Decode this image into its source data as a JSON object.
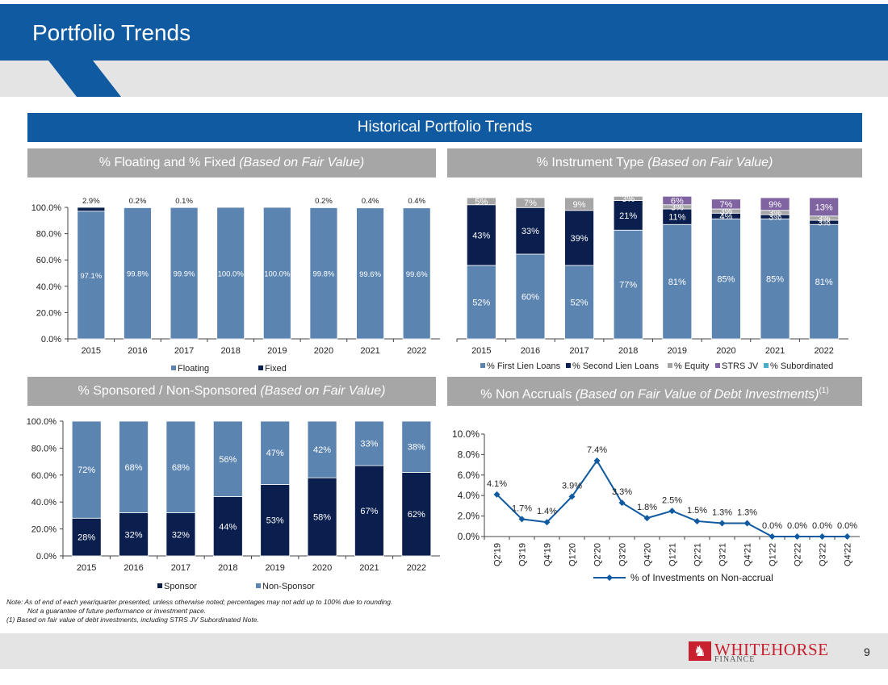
{
  "page": {
    "title": "Portfolio Trends",
    "section": "Historical Portfolio Trends",
    "page_number": "9",
    "logo_name": "WHITEHORSE",
    "logo_sub": "FINANCE",
    "logo_mark": "♞",
    "notes": [
      "Note: As of end of each year/quarter presented, unless otherwise noted; percentages may not add up to 100% due to rounding.",
      "Not a guarantee of future performance or investment pace.",
      "(1)    Based on fair value of debt investments, including STRS JV Subordinated Note."
    ]
  },
  "panels": {
    "floating": {
      "title": "% Floating and % Fixed ",
      "title_italic": "(Based on Fair Value)"
    },
    "instrument": {
      "title": "% Instrument Type ",
      "title_italic": "(Based on Fair Value)"
    },
    "sponsored": {
      "title": "% Sponsored / Non-Sponsored ",
      "title_italic": "(Based on Fair Value)"
    },
    "accruals": {
      "title": "% Non Accruals ",
      "title_italic": "(Based on Fair Value of Debt Investments)",
      "title_sup": "(1)"
    }
  },
  "colors": {
    "blue": "#0f5aa0",
    "light": "#5b84b1",
    "navy": "#0a1f4d",
    "gray": "#a6a6a6",
    "purple": "#8064a2",
    "teal": "#4bacc6"
  },
  "chart_data": [
    {
      "type": "bar",
      "stacked": true,
      "title": "% Floating and % Fixed (Based on Fair Value)",
      "categories": [
        "2015",
        "2016",
        "2017",
        "2018",
        "2019",
        "2020",
        "2021",
        "2022"
      ],
      "series": [
        {
          "name": "Floating",
          "values": [
            97.1,
            99.8,
            99.9,
            100.0,
            100.0,
            99.8,
            99.6,
            99.6
          ],
          "labels": [
            "97.1%",
            "99.8%",
            "99.9%",
            "100.0%",
            "100.0%",
            "99.8%",
            "99.6%",
            "99.6%"
          ]
        },
        {
          "name": "Fixed",
          "values": [
            2.9,
            0.2,
            0.1,
            0,
            0,
            0.2,
            0.4,
            0.4
          ],
          "labels": [
            "2.9%",
            "0.2%",
            "0.1%",
            "",
            "",
            "0.2%",
            "0.4%",
            "0.4%"
          ]
        }
      ],
      "y_ticks": [
        "0.0%",
        "20.0%",
        "40.0%",
        "60.0%",
        "80.0%",
        "100.0%"
      ],
      "ylim": [
        0,
        100
      ],
      "legend": "bottom"
    },
    {
      "type": "bar",
      "stacked": true,
      "title": "% Instrument Type (Based on Fair Value)",
      "categories": [
        "2015",
        "2016",
        "2017",
        "2018",
        "2019",
        "2020",
        "2021",
        "2022"
      ],
      "series": [
        {
          "name": "% First Lien Loans",
          "values": [
            52,
            60,
            52,
            77,
            81,
            85,
            85,
            81
          ],
          "labels": [
            "52%",
            "60%",
            "52%",
            "77%",
            "81%",
            "85%",
            "85%",
            "81%"
          ]
        },
        {
          "name": "% Second Lien Loans",
          "values": [
            43,
            33,
            39,
            21,
            11,
            4,
            3,
            3
          ],
          "labels": [
            "43%",
            "33%",
            "39%",
            "21%",
            "11%",
            "4%",
            "3%",
            "3%"
          ]
        },
        {
          "name": "% Equity",
          "values": [
            5,
            7,
            9,
            3,
            3,
            3,
            3,
            3
          ],
          "labels": [
            "5%",
            "7%",
            "9%",
            "3%",
            "3%",
            "3%",
            "3%",
            "3%"
          ]
        },
        {
          "name": "STRS JV",
          "values": [
            0,
            0,
            0,
            0,
            6,
            7,
            9,
            13
          ],
          "labels": [
            "",
            "",
            "",
            "",
            "6%",
            "7%",
            "9%",
            "13%"
          ]
        },
        {
          "name": "% Subordinated",
          "values": [
            0,
            0,
            0,
            0,
            0,
            0,
            0,
            0
          ],
          "labels": [
            "",
            "",
            "",
            "",
            "",
            "",
            "",
            ""
          ]
        }
      ],
      "ylim": [
        0,
        100
      ],
      "legend": "bottom"
    },
    {
      "type": "bar",
      "stacked": true,
      "title": "% Sponsored / Non-Sponsored (Based on Fair Value)",
      "categories": [
        "2015",
        "2016",
        "2017",
        "2018",
        "2019",
        "2020",
        "2021",
        "2022"
      ],
      "series": [
        {
          "name": "Sponsor",
          "values": [
            28,
            32,
            32,
            44,
            53,
            58,
            67,
            62
          ],
          "labels": [
            "28%",
            "32%",
            "32%",
            "44%",
            "53%",
            "58%",
            "67%",
            "62%"
          ]
        },
        {
          "name": "Non-Sponsor",
          "values": [
            72,
            68,
            68,
            56,
            47,
            42,
            33,
            38
          ],
          "labels": [
            "72%",
            "68%",
            "68%",
            "56%",
            "47%",
            "42%",
            "33%",
            "38%"
          ]
        }
      ],
      "y_ticks": [
        "0.0%",
        "20.0%",
        "40.0%",
        "60.0%",
        "80.0%",
        "100.0%"
      ],
      "ylim": [
        0,
        100
      ],
      "legend": "bottom"
    },
    {
      "type": "line",
      "title": "% Non Accruals (Based on Fair Value of Debt Investments)",
      "categories": [
        "Q2'19",
        "Q3'19",
        "Q4'19",
        "Q1'20",
        "Q2'20",
        "Q3'20",
        "Q4'20",
        "Q1'21",
        "Q2'21",
        "Q3'21",
        "Q4'21",
        "Q1'22",
        "Q2'22",
        "Q3'22",
        "Q4'22"
      ],
      "series": [
        {
          "name": "% of Investments on Non-accrual",
          "values": [
            4.1,
            1.7,
            1.4,
            3.9,
            7.4,
            3.3,
            1.8,
            2.5,
            1.5,
            1.3,
            1.3,
            0.0,
            0.0,
            0.0,
            0.0
          ],
          "labels": [
            "4.1%",
            "1.7%",
            "1.4%",
            "3.9%",
            "7.4%",
            "3.3%",
            "1.8%",
            "2.5%",
            "1.5%",
            "1.3%",
            "1.3%",
            "0.0%",
            "0.0%",
            "0.0%",
            "0.0%"
          ]
        }
      ],
      "y_ticks": [
        "0.0%",
        "2.0%",
        "4.0%",
        "6.0%",
        "8.0%",
        "10.0%"
      ],
      "ylim": [
        0,
        10
      ],
      "legend": "bottom"
    }
  ]
}
